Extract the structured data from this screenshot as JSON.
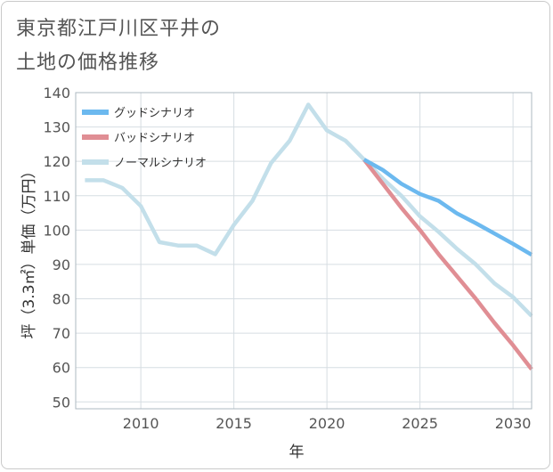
{
  "title_lines": [
    "東京都江戸川区平井の",
    "土地の価格推移"
  ],
  "chart_data": {
    "type": "line",
    "title": "東京都江戸川区平井の土地の価格推移",
    "xlabel": "年",
    "ylabel": "坪（3.3㎡）単価（万円）",
    "xlim": [
      2006.5,
      2031
    ],
    "ylim": [
      48,
      140
    ],
    "xticks": [
      2010,
      2015,
      2020,
      2025,
      2030
    ],
    "yticks": [
      50,
      60,
      70,
      80,
      90,
      100,
      110,
      120,
      130,
      140
    ],
    "grid": true,
    "legend_position": "top-left",
    "series": [
      {
        "name": "グッドシナリオ",
        "color": "#6cb9ef",
        "x": [
          2022,
          2023,
          2024,
          2025,
          2026,
          2027,
          2028,
          2029,
          2030,
          2031
        ],
        "y": [
          120.5,
          117.5,
          113.5,
          110.5,
          108.5,
          104.8,
          102,
          99,
          96,
          92.8
        ]
      },
      {
        "name": "バッドシナリオ",
        "color": "#e08e94",
        "x": [
          2022,
          2023,
          2024,
          2025,
          2026,
          2027,
          2028,
          2029,
          2030,
          2031
        ],
        "y": [
          120.5,
          113.5,
          106.5,
          100,
          93,
          86.5,
          80,
          73,
          66.5,
          59.5
        ]
      },
      {
        "name": "ノーマルシナリオ",
        "color": "#c3dfea",
        "x": [
          2007,
          2008,
          2009,
          2010,
          2011,
          2012,
          2013,
          2014,
          2015,
          2016,
          2017,
          2018,
          2019,
          2020,
          2021,
          2022,
          2023,
          2024,
          2025,
          2026,
          2027,
          2028,
          2029,
          2030,
          2031
        ],
        "y": [
          114.5,
          114.5,
          112.3,
          107,
          96.5,
          95.5,
          95.5,
          93,
          101.5,
          108.5,
          119.5,
          126,
          136.5,
          129,
          126,
          120.5,
          115,
          110,
          104,
          99.5,
          94.5,
          90,
          84.5,
          80.5,
          75
        ]
      }
    ]
  }
}
